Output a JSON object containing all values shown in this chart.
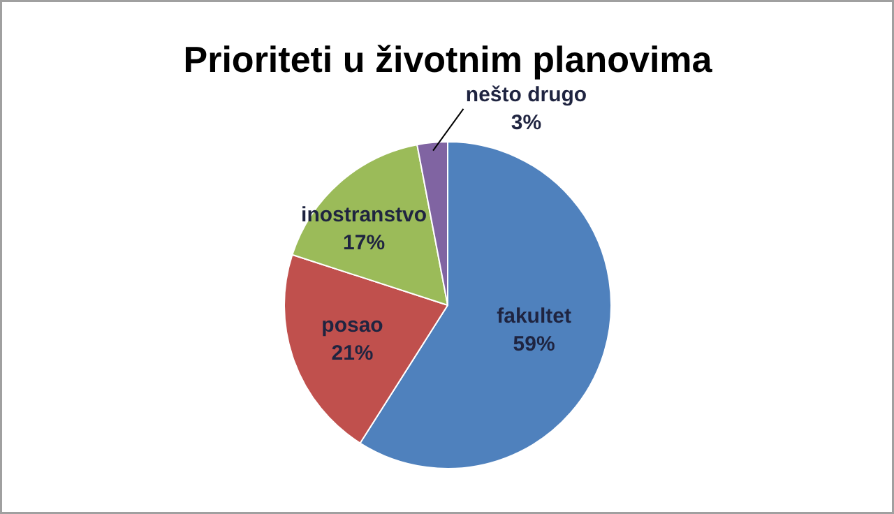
{
  "chart_data": {
    "type": "pie",
    "title": "Prioriteti u životnim planovima",
    "categories": [
      "fakultet",
      "posao",
      "inostranstvo",
      "nešto drugo"
    ],
    "values": [
      59,
      21,
      17,
      3
    ],
    "value_labels": [
      "59%",
      "21%",
      "17%",
      "3%"
    ],
    "colors": [
      "#4f81bd",
      "#c0504d",
      "#9bbb59",
      "#8064a2"
    ]
  }
}
